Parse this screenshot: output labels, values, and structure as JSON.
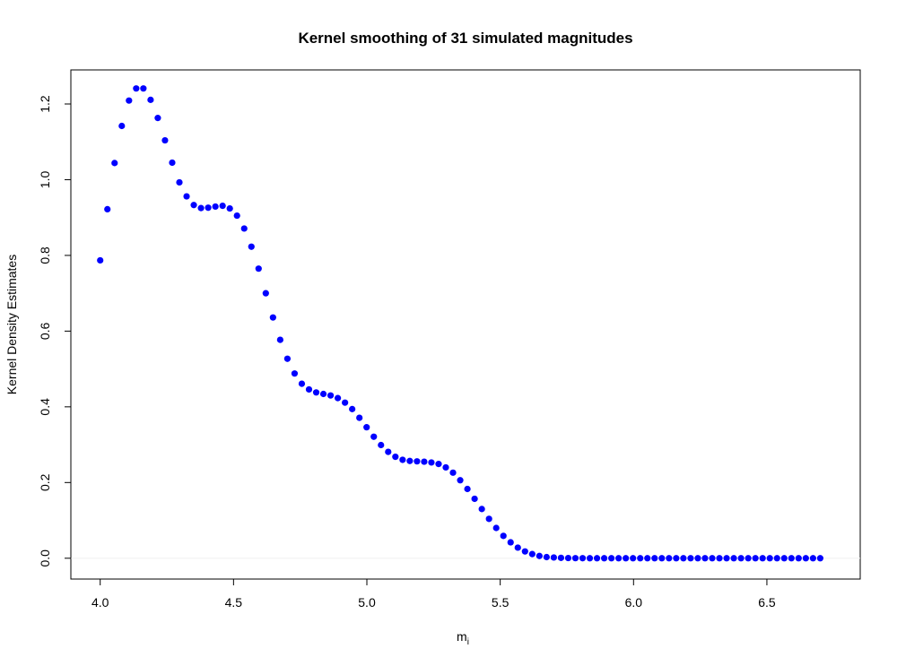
{
  "chart_data": {
    "type": "scatter",
    "title": "Kernel smoothing of 31 simulated magnitudes",
    "xlabel": "m",
    "xlabel_subscript": "i",
    "ylabel": "Kernel Density Estimates",
    "x_ticks": [
      "4.0",
      "4.5",
      "5.0",
      "5.5",
      "6.0",
      "6.5"
    ],
    "y_ticks": [
      "0.0",
      "0.2",
      "0.4",
      "0.6",
      "0.8",
      "1.0",
      "1.2"
    ],
    "xlim": [
      3.89,
      6.85
    ],
    "ylim": [
      -0.055,
      1.29
    ],
    "grid": false,
    "point_color": "#0000ff",
    "hline_y": 0,
    "x": [
      4.0,
      4.027,
      4.054,
      4.081,
      4.108,
      4.135,
      4.162,
      4.189,
      4.216,
      4.243,
      4.27,
      4.297,
      4.324,
      4.351,
      4.378,
      4.405,
      4.432,
      4.459,
      4.486,
      4.513,
      4.54,
      4.567,
      4.594,
      4.621,
      4.648,
      4.675,
      4.702,
      4.729,
      4.756,
      4.783,
      4.81,
      4.837,
      4.864,
      4.891,
      4.918,
      4.945,
      4.972,
      4.999,
      5.026,
      5.053,
      5.08,
      5.107,
      5.134,
      5.161,
      5.188,
      5.215,
      5.242,
      5.269,
      5.296,
      5.323,
      5.35,
      5.377,
      5.404,
      5.431,
      5.458,
      5.485,
      5.512,
      5.539,
      5.566,
      5.593,
      5.62,
      5.647,
      5.674,
      5.701,
      5.728,
      5.755,
      5.782,
      5.809,
      5.836,
      5.863,
      5.89,
      5.917,
      5.944,
      5.971,
      5.998,
      6.025,
      6.052,
      6.079,
      6.106,
      6.133,
      6.16,
      6.187,
      6.214,
      6.241,
      6.268,
      6.295,
      6.322,
      6.349,
      6.376,
      6.403,
      6.43,
      6.457,
      6.484,
      6.511,
      6.538,
      6.565,
      6.592,
      6.619,
      6.646,
      6.673,
      6.7
    ],
    "y": [
      0.787,
      0.922,
      1.044,
      1.142,
      1.209,
      1.241,
      1.241,
      1.211,
      1.163,
      1.104,
      1.045,
      0.993,
      0.956,
      0.933,
      0.925,
      0.926,
      0.929,
      0.931,
      0.924,
      0.905,
      0.871,
      0.823,
      0.765,
      0.7,
      0.636,
      0.577,
      0.527,
      0.488,
      0.461,
      0.446,
      0.438,
      0.434,
      0.43,
      0.423,
      0.411,
      0.394,
      0.371,
      0.346,
      0.321,
      0.299,
      0.281,
      0.268,
      0.26,
      0.257,
      0.256,
      0.255,
      0.253,
      0.249,
      0.24,
      0.226,
      0.206,
      0.183,
      0.157,
      0.13,
      0.104,
      0.08,
      0.059,
      0.042,
      0.028,
      0.018,
      0.011,
      0.006,
      0.003,
      0.002,
      0.001,
      0.0005,
      0.0002,
      0.0001,
      0.0,
      0.0,
      0.0,
      0.0,
      0.0,
      0.0,
      0.0,
      0.0,
      0.0,
      0.0,
      0.0,
      0.0,
      0.0,
      0.0,
      0.0,
      0.0,
      0.0,
      0.0,
      0.0,
      0.0,
      0.0,
      0.0,
      0.0,
      0.0,
      0.0,
      0.0,
      0.0,
      0.0,
      0.0,
      0.0,
      0.0,
      0.0,
      0.0
    ]
  }
}
